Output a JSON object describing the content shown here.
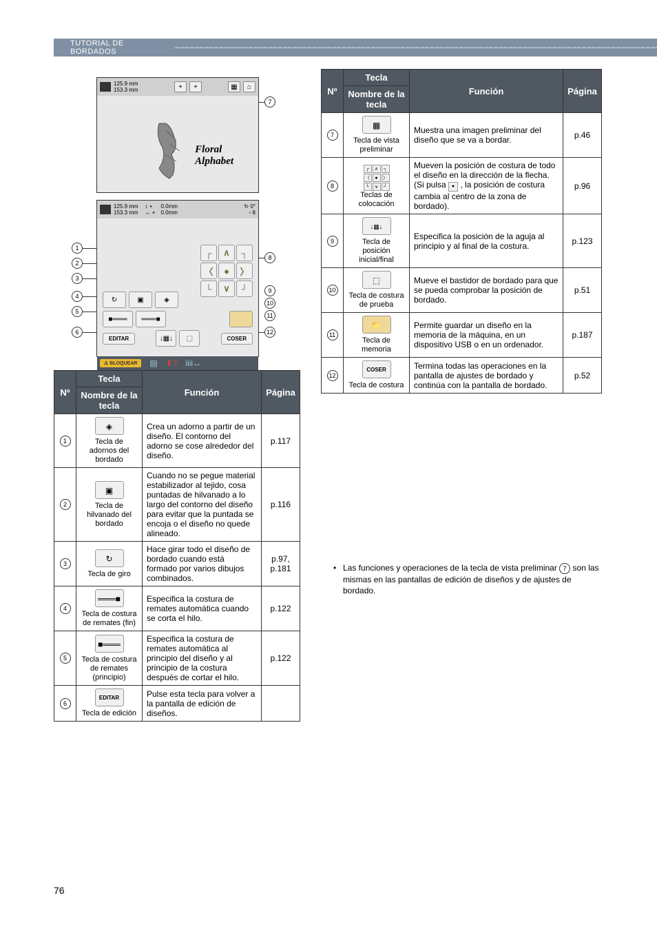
{
  "header": {
    "title": "TUTORIAL DE BORDADOS",
    "dashes": "–––––––––––––––––––––––––––––––––––––––––––––––––––––––––––––––––––––––––––––––––––––––––––––––––––––"
  },
  "screen1": {
    "dims_top": "125.9 mm",
    "dims_bottom": "153.3 mm",
    "floral_line1": "Floral",
    "floral_line2": "Alphabet"
  },
  "screen2": {
    "dims_top": "125.9 mm",
    "dims_bottom": "153.3 mm",
    "move_x": "0.0mm",
    "move_y": "0.0mm",
    "rotate": "0°",
    "count": "8",
    "editar": "EDITAR",
    "coser": "COSER",
    "bloquear": "BLOQUEAR"
  },
  "callouts": {
    "c1": "1",
    "c2": "2",
    "c3": "3",
    "c4": "4",
    "c5": "5",
    "c6": "6",
    "c7": "7",
    "c8": "8",
    "c9": "9",
    "c10": "10",
    "c11": "11",
    "c12": "12"
  },
  "table_headers": {
    "no": "Nº",
    "tecla": "Tecla",
    "nombre": "Nombre de la tecla",
    "funcion": "Función",
    "pagina": "Página"
  },
  "table1": {
    "rows": [
      {
        "num": "1",
        "name": "Tecla de adornos del bordado",
        "func": "Crea un adorno a partir de un diseño. El contorno del adorno se cose alrededor del diseño.",
        "page": "p.117"
      },
      {
        "num": "2",
        "name": "Tecla de hilvanado del bordado",
        "func": "Cuando no se pegue material estabilizador al tejido, cosa puntadas de hilvanado a lo largo del contorno del diseño para evitar que la puntada se encoja o el diseño no quede alineado.",
        "page": "p.116"
      },
      {
        "num": "3",
        "name": "Tecla de giro",
        "func": "Hace girar todo el diseño de bordado cuando está formado por varios dibujos combinados.",
        "page": "p.97, p.181"
      },
      {
        "num": "4",
        "name": "Tecla de costura de remates (fin)",
        "func": "Especifica la costura de remates automática cuando se corta el hilo.",
        "page": "p.122"
      },
      {
        "num": "5",
        "name": "Tecla de costura de remates (principio)",
        "func": "Especifica la costura de remates automática al principio del diseño y al principio de la costura después de cortar el hilo.",
        "page": "p.122"
      },
      {
        "num": "6",
        "name": "Tecla de edición",
        "func": "Pulse esta tecla para volver a la pantalla de edición de diseños.",
        "page": ""
      }
    ]
  },
  "table2": {
    "rows": [
      {
        "num": "7",
        "name": "Tecla de vista preliminar",
        "func": "Muestra una imagen preliminar del diseño que se va a bordar.",
        "page": "p.46"
      },
      {
        "num": "8",
        "name": "Teclas de colocación",
        "func_a": "Mueven la posición de costura de todo el diseño en la dirección de la flecha. (Si pulsa",
        "func_b": ", la posición de costura cambia al centro de la zona de bordado).",
        "page": "p.96"
      },
      {
        "num": "9",
        "name": "Tecla de posición inicial/final",
        "func": "Especifica la posición de la aguja al principio y al final de la costura.",
        "page": "p.123"
      },
      {
        "num": "10",
        "name": "Tecla de costura de prueba",
        "func": "Mueve el bastidor de bordado para que se pueda comprobar la posición de bordado.",
        "page": "p.51"
      },
      {
        "num": "11",
        "name": "Tecla de memoria",
        "func": "Permite guardar un diseño en la memoria de la máquina, en un dispositivo USB o en un ordenador.",
        "page": "p.187"
      },
      {
        "num": "12",
        "name": "Tecla de costura",
        "func": "Termina todas las operaciones en la pantalla de ajustes de bordado y continúa con la pantalla de bordado.",
        "page": "p.52"
      }
    ]
  },
  "note": "Las funciones y operaciones de la tecla de vista preliminar g son las mismas en las pantallas de edición de diseños y de ajustes de bordado.",
  "note_num": "7",
  "page_num": "76",
  "colors": {
    "header_bg": "#8090a4",
    "table_header_bg": "#505862",
    "arrow_color": "#6a7a45",
    "lock_bg": "#e8b830",
    "folder_bg": "#f0d898"
  }
}
